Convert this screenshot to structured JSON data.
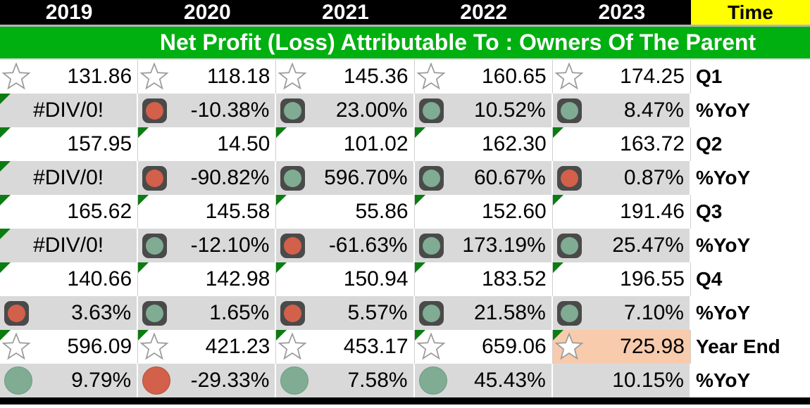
{
  "header": {
    "years": [
      "2019",
      "2020",
      "2021",
      "2022",
      "2023"
    ],
    "time_label": "Time"
  },
  "banner": {
    "title": "Net Profit (Loss) Attributable To : Owners Of The Parent"
  },
  "colors": {
    "banner_green": "#00AF10",
    "time_yellow": "#FFFF00",
    "row_gray": "#D9D9D9",
    "highlight_orange": "#F8CBAD",
    "icon_red": "#D2604A",
    "icon_green": "#7FAC93",
    "icon_rim": "#4A4A4A",
    "flag_green": "#0C7C12"
  },
  "rows": [
    {
      "label": "Q1",
      "shade": "white",
      "cells": [
        {
          "icon": "star",
          "value": "131.86"
        },
        {
          "icon": "star",
          "value": "118.18"
        },
        {
          "icon": "star",
          "value": "145.36"
        },
        {
          "icon": "star",
          "value": "160.65"
        },
        {
          "icon": "star",
          "value": "174.25"
        }
      ]
    },
    {
      "label": "%YoY",
      "shade": "gray",
      "cells": [
        {
          "icon": null,
          "value": "#DIV/0!",
          "error": true,
          "triangle": true
        },
        {
          "icon": "rim-red",
          "value": "-10.38%"
        },
        {
          "icon": "rim-green",
          "value": "23.00%"
        },
        {
          "icon": "rim-green",
          "value": "10.52%"
        },
        {
          "icon": "rim-green",
          "value": "8.47%"
        }
      ]
    },
    {
      "label": "Q2",
      "shade": "white",
      "cells": [
        {
          "icon": null,
          "value": "157.95",
          "triangle": true
        },
        {
          "icon": null,
          "value": "14.50",
          "triangle": true
        },
        {
          "icon": null,
          "value": "101.02",
          "triangle": true
        },
        {
          "icon": null,
          "value": "162.30",
          "triangle": true
        },
        {
          "icon": null,
          "value": "163.72",
          "triangle": true
        }
      ]
    },
    {
      "label": "%YoY",
      "shade": "gray",
      "cells": [
        {
          "icon": null,
          "value": "#DIV/0!",
          "error": true,
          "triangle": true
        },
        {
          "icon": "rim-red",
          "value": "-90.82%"
        },
        {
          "icon": "rim-green",
          "value": "596.70%"
        },
        {
          "icon": "rim-green",
          "value": "60.67%"
        },
        {
          "icon": "rim-red",
          "value": "0.87%"
        }
      ]
    },
    {
      "label": "Q3",
      "shade": "white",
      "cells": [
        {
          "icon": null,
          "value": "165.62",
          "triangle": true
        },
        {
          "icon": null,
          "value": "145.58",
          "triangle": true
        },
        {
          "icon": null,
          "value": "55.86",
          "triangle": true
        },
        {
          "icon": null,
          "value": "152.60",
          "triangle": true
        },
        {
          "icon": null,
          "value": "191.46",
          "triangle": true
        }
      ]
    },
    {
      "label": "%YoY",
      "shade": "gray",
      "cells": [
        {
          "icon": null,
          "value": "#DIV/0!",
          "error": true,
          "triangle": true
        },
        {
          "icon": "rim-green",
          "value": "-12.10%"
        },
        {
          "icon": "rim-red",
          "value": "-61.63%"
        },
        {
          "icon": "rim-green",
          "value": "173.19%"
        },
        {
          "icon": "rim-green",
          "value": "25.47%"
        }
      ]
    },
    {
      "label": "Q4",
      "shade": "white",
      "cells": [
        {
          "icon": null,
          "value": "140.66",
          "triangle": true
        },
        {
          "icon": null,
          "value": "142.98",
          "triangle": true
        },
        {
          "icon": null,
          "value": "150.94",
          "triangle": true
        },
        {
          "icon": null,
          "value": "183.52",
          "triangle": true
        },
        {
          "icon": null,
          "value": "196.55",
          "triangle": true
        }
      ]
    },
    {
      "label": "%YoY",
      "shade": "gray",
      "cells": [
        {
          "icon": "rim-red",
          "value": "3.63%"
        },
        {
          "icon": "rim-green",
          "value": "1.65%"
        },
        {
          "icon": "rim-red",
          "value": "5.57%"
        },
        {
          "icon": "rim-green",
          "value": "21.58%"
        },
        {
          "icon": "rim-green",
          "value": "7.10%"
        }
      ]
    },
    {
      "label": "Year End",
      "shade": "white",
      "cells": [
        {
          "icon": "star",
          "value": "596.09",
          "triangle": true
        },
        {
          "icon": "star",
          "value": "421.23",
          "triangle": true
        },
        {
          "icon": "star",
          "value": "453.17",
          "triangle": true
        },
        {
          "icon": "star",
          "value": "659.06",
          "triangle": true
        },
        {
          "icon": "star",
          "value": "725.98",
          "triangle": true,
          "highlight": "orange"
        }
      ]
    },
    {
      "label": "%YoY",
      "shade": "gray",
      "cells": [
        {
          "icon": "circle-green",
          "value": "9.79%"
        },
        {
          "icon": "circle-red",
          "value": "-29.33%"
        },
        {
          "icon": "circle-green",
          "value": "7.58%"
        },
        {
          "icon": "circle-green",
          "value": "45.43%"
        },
        {
          "icon": null,
          "value": "10.15%"
        }
      ]
    }
  ]
}
